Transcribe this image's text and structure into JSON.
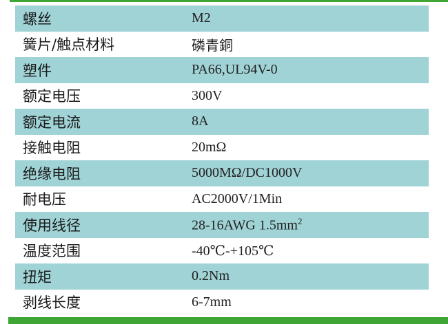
{
  "colors": {
    "accent": "#3fa535",
    "row_alt": "#a0d3d6"
  },
  "rows": [
    {
      "label": "螺丝",
      "value": "M2"
    },
    {
      "label": "簧片/触点材料",
      "value": "磷青銅"
    },
    {
      "label": "塑件",
      "value": "PA66,UL94V-0"
    },
    {
      "label": "额定电压",
      "value": "300V"
    },
    {
      "label": "额定电流",
      "value": "8A"
    },
    {
      "label": "接触电阻",
      "value": "20mΩ"
    },
    {
      "label": "绝缘电阻",
      "value": "5000MΩ/DC1000V"
    },
    {
      "label": "耐电压",
      "value": "AC2000V/1Min"
    },
    {
      "label": "使用线径",
      "value": "28-16AWG  1.5mm",
      "sup": "2"
    },
    {
      "label": "温度范围",
      "value": "-40℃-+105℃"
    },
    {
      "label": "扭矩",
      "value": "0.2Nm"
    },
    {
      "label": "剥线长度",
      "value": "6-7mm"
    }
  ]
}
